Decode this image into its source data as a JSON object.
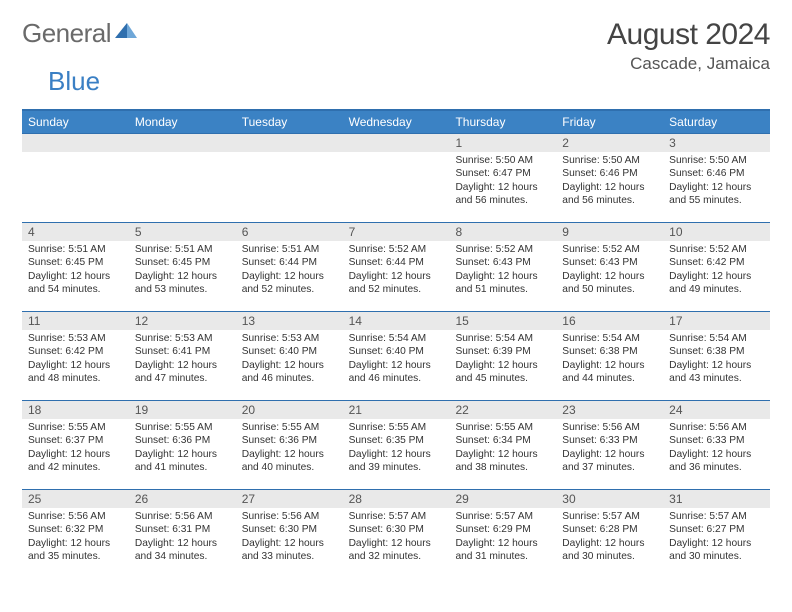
{
  "logo": {
    "part1": "General",
    "part2": "Blue"
  },
  "title": "August 2024",
  "subtitle": "Cascade, Jamaica",
  "colors": {
    "header_bg": "#3b82c4",
    "header_text": "#ffffff",
    "rule": "#2f6fae",
    "daynum_bg": "#e9e9e9",
    "body_text": "#333333",
    "logo_gray": "#6a6a6a",
    "logo_blue": "#3a7fc4"
  },
  "day_names": [
    "Sunday",
    "Monday",
    "Tuesday",
    "Wednesday",
    "Thursday",
    "Friday",
    "Saturday"
  ],
  "weeks": [
    [
      {
        "n": "",
        "sr": "",
        "ss": "",
        "dl": ""
      },
      {
        "n": "",
        "sr": "",
        "ss": "",
        "dl": ""
      },
      {
        "n": "",
        "sr": "",
        "ss": "",
        "dl": ""
      },
      {
        "n": "",
        "sr": "",
        "ss": "",
        "dl": ""
      },
      {
        "n": "1",
        "sr": "5:50 AM",
        "ss": "6:47 PM",
        "dl": "12 hours and 56 minutes."
      },
      {
        "n": "2",
        "sr": "5:50 AM",
        "ss": "6:46 PM",
        "dl": "12 hours and 56 minutes."
      },
      {
        "n": "3",
        "sr": "5:50 AM",
        "ss": "6:46 PM",
        "dl": "12 hours and 55 minutes."
      }
    ],
    [
      {
        "n": "4",
        "sr": "5:51 AM",
        "ss": "6:45 PM",
        "dl": "12 hours and 54 minutes."
      },
      {
        "n": "5",
        "sr": "5:51 AM",
        "ss": "6:45 PM",
        "dl": "12 hours and 53 minutes."
      },
      {
        "n": "6",
        "sr": "5:51 AM",
        "ss": "6:44 PM",
        "dl": "12 hours and 52 minutes."
      },
      {
        "n": "7",
        "sr": "5:52 AM",
        "ss": "6:44 PM",
        "dl": "12 hours and 52 minutes."
      },
      {
        "n": "8",
        "sr": "5:52 AM",
        "ss": "6:43 PM",
        "dl": "12 hours and 51 minutes."
      },
      {
        "n": "9",
        "sr": "5:52 AM",
        "ss": "6:43 PM",
        "dl": "12 hours and 50 minutes."
      },
      {
        "n": "10",
        "sr": "5:52 AM",
        "ss": "6:42 PM",
        "dl": "12 hours and 49 minutes."
      }
    ],
    [
      {
        "n": "11",
        "sr": "5:53 AM",
        "ss": "6:42 PM",
        "dl": "12 hours and 48 minutes."
      },
      {
        "n": "12",
        "sr": "5:53 AM",
        "ss": "6:41 PM",
        "dl": "12 hours and 47 minutes."
      },
      {
        "n": "13",
        "sr": "5:53 AM",
        "ss": "6:40 PM",
        "dl": "12 hours and 46 minutes."
      },
      {
        "n": "14",
        "sr": "5:54 AM",
        "ss": "6:40 PM",
        "dl": "12 hours and 46 minutes."
      },
      {
        "n": "15",
        "sr": "5:54 AM",
        "ss": "6:39 PM",
        "dl": "12 hours and 45 minutes."
      },
      {
        "n": "16",
        "sr": "5:54 AM",
        "ss": "6:38 PM",
        "dl": "12 hours and 44 minutes."
      },
      {
        "n": "17",
        "sr": "5:54 AM",
        "ss": "6:38 PM",
        "dl": "12 hours and 43 minutes."
      }
    ],
    [
      {
        "n": "18",
        "sr": "5:55 AM",
        "ss": "6:37 PM",
        "dl": "12 hours and 42 minutes."
      },
      {
        "n": "19",
        "sr": "5:55 AM",
        "ss": "6:36 PM",
        "dl": "12 hours and 41 minutes."
      },
      {
        "n": "20",
        "sr": "5:55 AM",
        "ss": "6:36 PM",
        "dl": "12 hours and 40 minutes."
      },
      {
        "n": "21",
        "sr": "5:55 AM",
        "ss": "6:35 PM",
        "dl": "12 hours and 39 minutes."
      },
      {
        "n": "22",
        "sr": "5:55 AM",
        "ss": "6:34 PM",
        "dl": "12 hours and 38 minutes."
      },
      {
        "n": "23",
        "sr": "5:56 AM",
        "ss": "6:33 PM",
        "dl": "12 hours and 37 minutes."
      },
      {
        "n": "24",
        "sr": "5:56 AM",
        "ss": "6:33 PM",
        "dl": "12 hours and 36 minutes."
      }
    ],
    [
      {
        "n": "25",
        "sr": "5:56 AM",
        "ss": "6:32 PM",
        "dl": "12 hours and 35 minutes."
      },
      {
        "n": "26",
        "sr": "5:56 AM",
        "ss": "6:31 PM",
        "dl": "12 hours and 34 minutes."
      },
      {
        "n": "27",
        "sr": "5:56 AM",
        "ss": "6:30 PM",
        "dl": "12 hours and 33 minutes."
      },
      {
        "n": "28",
        "sr": "5:57 AM",
        "ss": "6:30 PM",
        "dl": "12 hours and 32 minutes."
      },
      {
        "n": "29",
        "sr": "5:57 AM",
        "ss": "6:29 PM",
        "dl": "12 hours and 31 minutes."
      },
      {
        "n": "30",
        "sr": "5:57 AM",
        "ss": "6:28 PM",
        "dl": "12 hours and 30 minutes."
      },
      {
        "n": "31",
        "sr": "5:57 AM",
        "ss": "6:27 PM",
        "dl": "12 hours and 30 minutes."
      }
    ]
  ],
  "labels": {
    "sunrise": "Sunrise: ",
    "sunset": "Sunset: ",
    "daylight": "Daylight: "
  }
}
